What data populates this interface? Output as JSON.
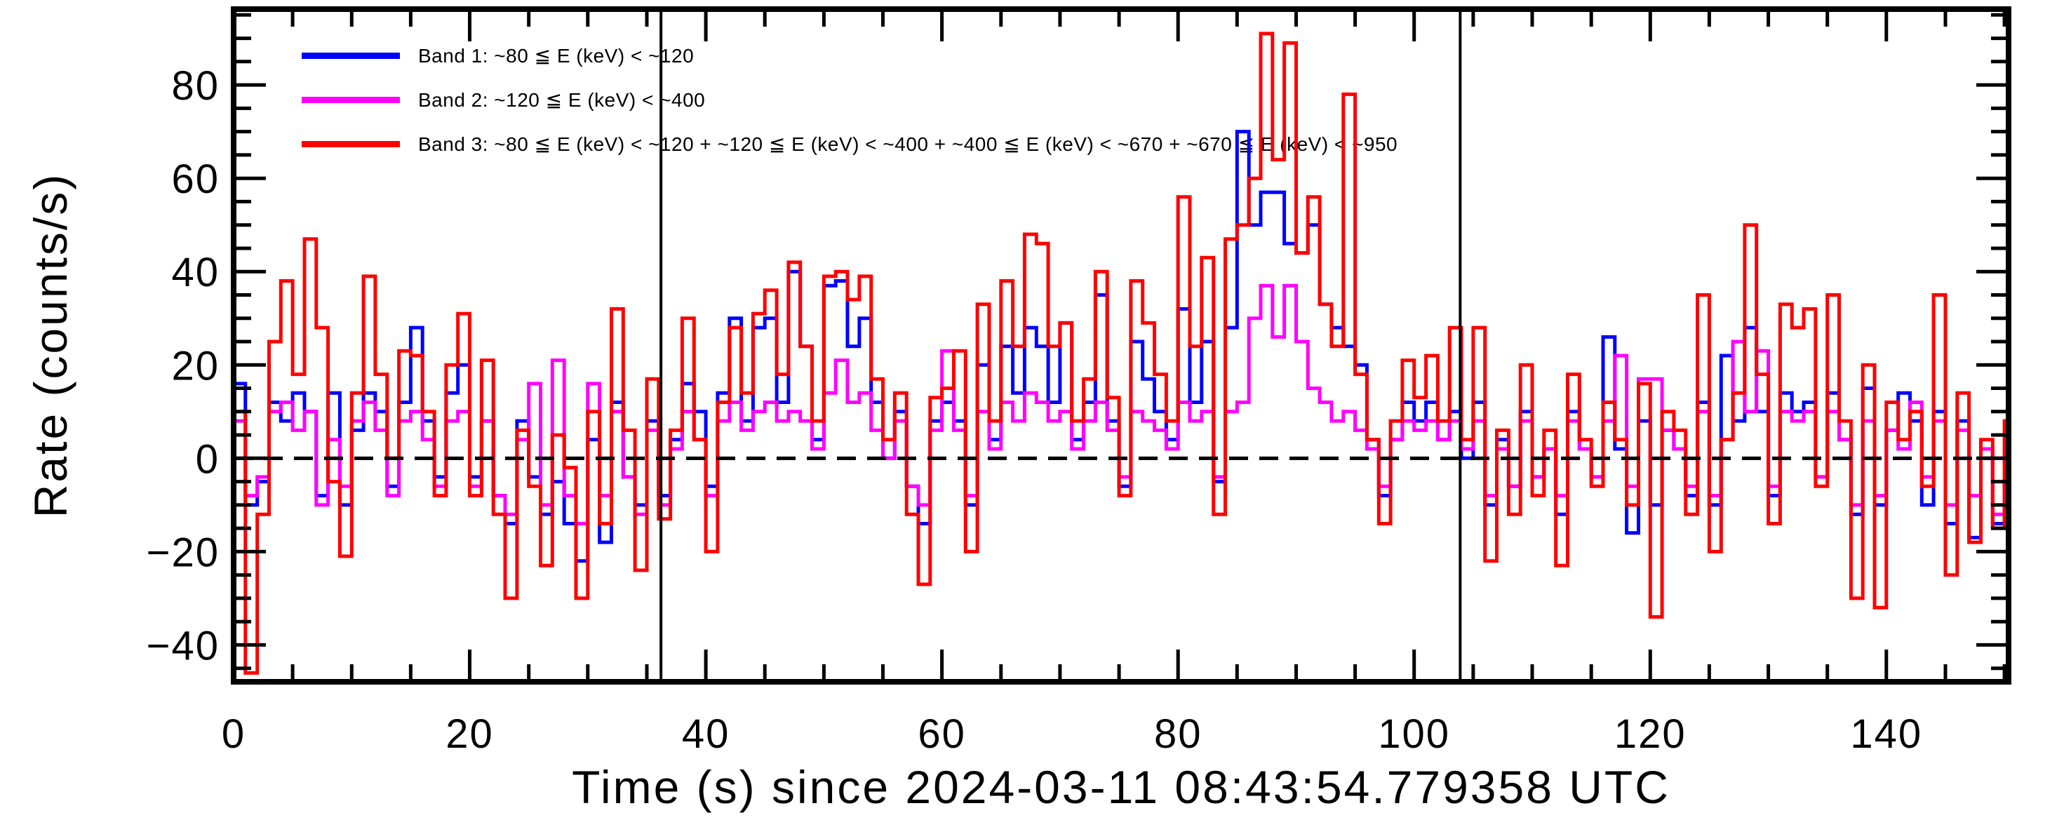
{
  "figure": {
    "background": "#ffffff",
    "frame_color": "#000000"
  },
  "legend": {
    "items": [
      {
        "label": "Band 1: ~80 ≦ E (keV) < ~120",
        "color": "#0000ff"
      },
      {
        "label": "Band 2: ~120 ≦ E (keV) < ~400",
        "color": "#ff00ff"
      },
      {
        "label": "Band 3: ~80 ≦ E (keV) < ~120 + ~120 ≦ E (keV) < ~400 + ~400 ≦ E (keV) < ~670 + ~670 ≦ E (keV) < ~950",
        "color": "#ff0000"
      }
    ]
  },
  "chart_data": {
    "type": "line",
    "subtype": "step-histogram",
    "title": "",
    "xlabel": "Time (s) since 2024-03-11 08:43:54.779358 UTC",
    "ylabel": "Rate (counts/s)",
    "xlim": [
      0,
      150.35
    ],
    "ylim": [
      -47.9,
      96.25
    ],
    "x_major_ticks": [
      0,
      20,
      40,
      60,
      80,
      100,
      120,
      140
    ],
    "x_minor_step": 5,
    "y_major_ticks": [
      -40,
      -20,
      0,
      20,
      40,
      60,
      80
    ],
    "y_minor_step": 5,
    "grid": false,
    "legend_position": "top-left-inside",
    "zero_line": {
      "y": 0,
      "style": "dashed",
      "color": "#000000"
    },
    "vertical_markers": [
      {
        "x": 36.2,
        "color": "#000000"
      },
      {
        "x": 103.9,
        "color": "#000000"
      }
    ],
    "bin_width_s": 1,
    "x_start": 0,
    "series": [
      {
        "name": "Band 1",
        "color": "#0000ff",
        "values": [
          16,
          -10,
          -5,
          12,
          8,
          14,
          10,
          -8,
          14,
          -10,
          6,
          14,
          10,
          -6,
          12,
          28,
          8,
          -4,
          14,
          20,
          -4,
          8,
          -8,
          -14,
          8,
          -4,
          -12,
          -5,
          -14,
          -22,
          4,
          -18,
          12,
          -4,
          -10,
          8,
          -8,
          4,
          16,
          10,
          -6,
          14,
          30,
          8,
          28,
          30,
          12,
          40,
          24,
          4,
          37,
          38,
          24,
          30,
          12,
          0,
          10,
          -6,
          -14,
          8,
          12,
          8,
          -10,
          20,
          4,
          24,
          14,
          28,
          24,
          12,
          29,
          4,
          12,
          35,
          8,
          -6,
          25,
          17,
          10,
          4,
          32,
          12,
          25,
          -5,
          28,
          70,
          50,
          57,
          57,
          46,
          44,
          50,
          33,
          28,
          24,
          20,
          4,
          -8,
          4,
          12,
          8,
          12,
          4,
          10,
          0,
          12,
          -10,
          4,
          -6,
          10,
          -4,
          2,
          -12,
          10,
          2,
          -4,
          26,
          2,
          -16,
          8,
          -10,
          6,
          2,
          -8,
          12,
          -10,
          22,
          8,
          28,
          10,
          -8,
          14,
          10,
          12,
          -4,
          14,
          4,
          -12,
          15,
          -10,
          6,
          14,
          8,
          -10,
          10,
          -14,
          8,
          -17,
          2,
          -14,
          -5
        ]
      },
      {
        "name": "Band 2",
        "color": "#ff00ff",
        "values": [
          8,
          -8,
          -4,
          10,
          12,
          6,
          10,
          -10,
          4,
          -6,
          8,
          12,
          6,
          -8,
          8,
          10,
          4,
          -6,
          8,
          10,
          -6,
          8,
          -8,
          -12,
          4,
          16,
          -10,
          21,
          -8,
          -14,
          16,
          -8,
          10,
          -4,
          -12,
          6,
          -10,
          2,
          10,
          4,
          -8,
          8,
          12,
          6,
          10,
          12,
          8,
          10,
          8,
          2,
          14,
          21,
          12,
          14,
          6,
          0,
          8,
          -6,
          -10,
          6,
          23,
          6,
          -8,
          10,
          2,
          12,
          8,
          14,
          12,
          8,
          10,
          2,
          8,
          12,
          6,
          -4,
          10,
          8,
          6,
          2,
          12,
          8,
          10,
          -4,
          10,
          12,
          30,
          37,
          26,
          37,
          25,
          15,
          12,
          8,
          10,
          6,
          2,
          -6,
          4,
          8,
          6,
          8,
          4,
          8,
          2,
          8,
          -8,
          2,
          -6,
          8,
          -4,
          2,
          -8,
          8,
          2,
          -4,
          8,
          22,
          -6,
          17,
          17,
          6,
          2,
          -6,
          10,
          -8,
          4,
          25,
          10,
          23,
          -6,
          10,
          8,
          10,
          -4,
          10,
          4,
          -10,
          8,
          -8,
          6,
          2,
          12,
          -4,
          8,
          -10,
          6,
          -8,
          2,
          -12,
          -8
        ]
      },
      {
        "name": "Band 3",
        "color": "#ff0000",
        "values": [
          10,
          -46,
          -12,
          25,
          38,
          18,
          47,
          28,
          -5,
          -21,
          14,
          39,
          18,
          0,
          23,
          22,
          10,
          -8,
          20,
          31,
          -8,
          21,
          -12,
          -30,
          6,
          -6,
          -23,
          5,
          -2,
          -30,
          10,
          -14,
          32,
          6,
          -24,
          17,
          -13,
          6,
          30,
          4,
          -20,
          12,
          28,
          14,
          31,
          36,
          18,
          42,
          24,
          8,
          39,
          40,
          34,
          39,
          17,
          4,
          14,
          -12,
          -27,
          13,
          15,
          23,
          -20,
          33,
          8,
          38,
          24,
          48,
          46,
          24,
          29,
          8,
          17,
          40,
          13,
          -8,
          38,
          29,
          18,
          8,
          56,
          24,
          43,
          -12,
          47,
          50,
          60,
          91,
          64,
          89,
          44,
          56,
          33,
          24,
          78,
          18,
          4,
          -14,
          8,
          21,
          13,
          22,
          8,
          28,
          4,
          28,
          -22,
          6,
          -12,
          20,
          -8,
          6,
          -23,
          18,
          4,
          -6,
          12,
          4,
          -10,
          16,
          -34,
          10,
          6,
          -12,
          35,
          -20,
          4,
          14,
          50,
          18,
          -14,
          33,
          28,
          32,
          -6,
          35,
          8,
          -30,
          20,
          -32,
          12,
          4,
          10,
          -6,
          35,
          -25,
          14,
          -18,
          4,
          -15,
          8
        ]
      }
    ]
  }
}
